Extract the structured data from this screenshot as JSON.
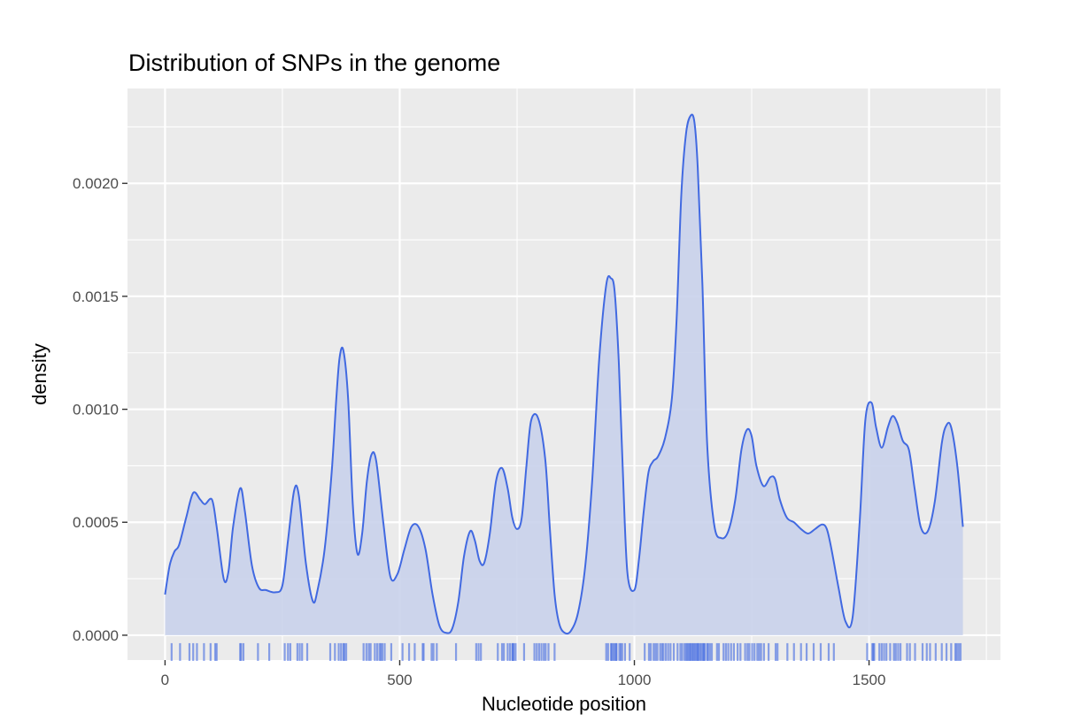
{
  "chart_data": {
    "type": "area",
    "title": "Distribution of SNPs in the genome",
    "xlabel": "Nucleotide position",
    "ylabel": "density",
    "xlim": [
      -80,
      1780
    ],
    "ylim": [
      -0.00011,
      0.00242
    ],
    "x_ticks": [
      0,
      500,
      1000,
      1500
    ],
    "x_tick_labels": [
      "0",
      "500",
      "1000",
      "1500"
    ],
    "y_ticks": [
      0,
      0.0005,
      0.001,
      0.0015,
      0.002
    ],
    "y_tick_labels": [
      "0.0000",
      "0.0005",
      "0.0010",
      "0.0015",
      "0.0020"
    ],
    "grid": true,
    "series": [
      {
        "x": [
          0,
          10,
          20,
          30,
          45,
          60,
          75,
          85,
          100,
          110,
          125,
          135,
          145,
          160,
          170,
          185,
          200,
          215,
          235,
          250,
          262,
          275,
          285,
          300,
          315,
          325,
          340,
          355,
          365,
          372,
          380,
          390,
          400,
          410,
          420,
          430,
          440,
          450,
          465,
          480,
          495,
          510,
          525,
          540,
          555,
          570,
          585,
          600,
          612,
          625,
          637,
          650,
          660,
          670,
          680,
          692,
          705,
          718,
          730,
          740,
          750,
          760,
          770,
          780,
          795,
          810,
          820,
          830,
          840,
          852,
          865,
          880,
          895,
          910,
          925,
          940,
          950,
          958,
          967,
          975,
          985,
          1000,
          1010,
          1020,
          1030,
          1040,
          1050,
          1065,
          1080,
          1090,
          1100,
          1110,
          1120,
          1128,
          1135,
          1145,
          1155,
          1170,
          1185,
          1200,
          1215,
          1228,
          1240,
          1250,
          1260,
          1275,
          1290,
          1300,
          1310,
          1325,
          1340,
          1355,
          1370,
          1385,
          1400,
          1410,
          1420,
          1435,
          1450,
          1465,
          1480,
          1492,
          1505,
          1515,
          1527,
          1540,
          1550,
          1560,
          1572,
          1585,
          1597,
          1610,
          1625,
          1640,
          1655,
          1665,
          1675,
          1688,
          1700
        ],
        "y": [
          0.00018,
          0.00031,
          0.00037,
          0.0004,
          0.00052,
          0.00063,
          0.0006,
          0.00058,
          0.0006,
          0.00048,
          0.00025,
          0.00028,
          0.00048,
          0.00065,
          0.00055,
          0.00031,
          0.00021,
          0.0002,
          0.00019,
          0.00022,
          0.00042,
          0.00064,
          0.00062,
          0.00032,
          0.00015,
          0.0002,
          0.00038,
          0.00072,
          0.00105,
          0.00123,
          0.00126,
          0.00105,
          0.00058,
          0.00036,
          0.00045,
          0.00068,
          0.0008,
          0.00077,
          0.0005,
          0.00026,
          0.00027,
          0.00038,
          0.00048,
          0.00048,
          0.00038,
          0.00018,
          4e-05,
          1e-05,
          3e-05,
          0.00015,
          0.00035,
          0.00046,
          0.00042,
          0.00033,
          0.00032,
          0.00045,
          0.00068,
          0.00074,
          0.00065,
          0.00052,
          0.00047,
          0.00052,
          0.00075,
          0.00095,
          0.00096,
          0.00078,
          0.00047,
          0.00018,
          5e-05,
          1e-05,
          2e-05,
          0.0001,
          0.0003,
          0.00068,
          0.00122,
          0.00155,
          0.00158,
          0.00152,
          0.0012,
          0.00075,
          0.00028,
          0.0002,
          0.00034,
          0.00055,
          0.00072,
          0.00077,
          0.00079,
          0.00087,
          0.00105,
          0.0014,
          0.00195,
          0.00222,
          0.0023,
          0.00227,
          0.00207,
          0.00155,
          0.00085,
          0.00049,
          0.00043,
          0.00046,
          0.0006,
          0.00082,
          0.00091,
          0.00088,
          0.00075,
          0.00066,
          0.0007,
          0.00069,
          0.0006,
          0.00052,
          0.0005,
          0.00047,
          0.00045,
          0.00047,
          0.00049,
          0.00047,
          0.00038,
          0.00021,
          6e-05,
          8e-05,
          0.0005,
          0.00095,
          0.00103,
          0.00092,
          0.00083,
          0.00092,
          0.00097,
          0.00094,
          0.00086,
          0.00082,
          0.00065,
          0.00048,
          0.00046,
          0.00059,
          0.00085,
          0.00093,
          0.00092,
          0.00075,
          0.00048
        ]
      }
    ],
    "rug": [
      14,
      32,
      52,
      60,
      68,
      83,
      97,
      107,
      110,
      160,
      162,
      167,
      198,
      222,
      255,
      262,
      267,
      282,
      287,
      292,
      303,
      352,
      362,
      370,
      375,
      380,
      382,
      386,
      423,
      429,
      434,
      438,
      447,
      452,
      457,
      460,
      463,
      468,
      482,
      506,
      520,
      532,
      549,
      551,
      568,
      572,
      579,
      620,
      663,
      668,
      673,
      709,
      718,
      722,
      730,
      735,
      740,
      741,
      743,
      747,
      765,
      787,
      792,
      797,
      802,
      807,
      811,
      817,
      830,
      940,
      944,
      950,
      952,
      955,
      958,
      961,
      962,
      968,
      971,
      974,
      980,
      990,
      1022,
      1031,
      1035,
      1041,
      1045,
      1049,
      1055,
      1059,
      1062,
      1067,
      1072,
      1077,
      1084,
      1092,
      1098,
      1102,
      1107,
      1110,
      1113,
      1115,
      1118,
      1120,
      1123,
      1125,
      1128,
      1130,
      1133,
      1135,
      1137,
      1140,
      1143,
      1146,
      1148,
      1150,
      1155,
      1157,
      1161,
      1165,
      1176,
      1180,
      1190,
      1195,
      1200,
      1206,
      1212,
      1220,
      1226,
      1236,
      1241,
      1245,
      1251,
      1256,
      1262,
      1266,
      1270,
      1276,
      1286,
      1301,
      1305,
      1326,
      1340,
      1355,
      1367,
      1382,
      1397,
      1414,
      1425,
      1496,
      1507,
      1509,
      1511,
      1522,
      1527,
      1532,
      1537,
      1545,
      1553,
      1557,
      1562,
      1567,
      1581,
      1587,
      1598,
      1614,
      1623,
      1630,
      1642,
      1655,
      1665,
      1675,
      1684,
      1687,
      1691,
      1695
    ],
    "colors": {
      "line": "#4169e1",
      "fill": "#c9d2eb",
      "rug": "#4169e1",
      "panel": "#ebebeb",
      "grid": "#ffffff",
      "tick_text": "#4d4d4d"
    }
  }
}
